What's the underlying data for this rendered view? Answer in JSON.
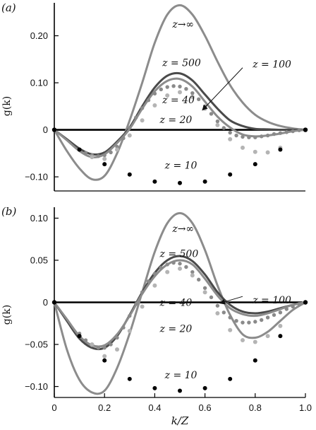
{
  "chart_data": [
    {
      "type": "line",
      "panel_label": "(a)",
      "ylabel": "g(k)",
      "xlabel": "",
      "xlim": [
        0,
        1
      ],
      "ylim": [
        -0.13,
        0.27
      ],
      "yticks": [
        {
          "value": 0.2,
          "label": "0.20"
        },
        {
          "value": 0.1,
          "label": "0.10"
        },
        {
          "value": 0,
          "label": "0"
        },
        {
          "value": -0.1,
          "label": "−0.10"
        }
      ],
      "xticks": [],
      "series": [
        {
          "name": "z→∞",
          "style": "line",
          "color": "#8c8c8c",
          "width": 3,
          "x": [
            0,
            0.05,
            0.1,
            0.15,
            0.2,
            0.25,
            0.3,
            0.35,
            0.4,
            0.45,
            0.5,
            0.55,
            0.6,
            0.65,
            0.7,
            0.75,
            0.8,
            0.85,
            0.9,
            0.95,
            1.0
          ],
          "y": [
            0,
            -0.045,
            -0.082,
            -0.105,
            -0.098,
            -0.05,
            0.02,
            0.1,
            0.185,
            0.245,
            0.265,
            0.245,
            0.2,
            0.145,
            0.095,
            0.058,
            0.032,
            0.017,
            0.008,
            0.003,
            0
          ]
        },
        {
          "name": "z = 500",
          "style": "line",
          "color": "#4a4a4a",
          "width": 3,
          "x": [
            0,
            0.05,
            0.1,
            0.15,
            0.2,
            0.25,
            0.3,
            0.35,
            0.4,
            0.45,
            0.5,
            0.55,
            0.6,
            0.65,
            0.7,
            0.75,
            0.8,
            0.85,
            0.9,
            0.95,
            1.0
          ],
          "y": [
            0,
            -0.02,
            -0.04,
            -0.052,
            -0.048,
            -0.025,
            0.005,
            0.05,
            0.09,
            0.115,
            0.12,
            0.105,
            0.075,
            0.045,
            0.02,
            0.008,
            0.002,
            0.001,
            0,
            0,
            0
          ]
        },
        {
          "name": "z = 100",
          "style": "line",
          "color": "#8c8c8c",
          "width": 3,
          "x": [
            0,
            0.05,
            0.1,
            0.15,
            0.2,
            0.25,
            0.3,
            0.35,
            0.4,
            0.45,
            0.5,
            0.55,
            0.6,
            0.65,
            0.7,
            0.75,
            0.8,
            0.85,
            0.9,
            0.95,
            1.0
          ],
          "y": [
            0,
            -0.022,
            -0.045,
            -0.058,
            -0.052,
            -0.028,
            0.002,
            0.045,
            0.082,
            0.104,
            0.108,
            0.092,
            0.06,
            0.028,
            0.005,
            -0.01,
            -0.014,
            -0.012,
            -0.008,
            -0.003,
            0
          ]
        },
        {
          "name": "z = 40",
          "style": "points",
          "color": "#8a8a8a",
          "r": 2.7,
          "x": [
            0.1,
            0.125,
            0.15,
            0.175,
            0.2,
            0.225,
            0.25,
            0.275,
            0.3,
            0.325,
            0.35,
            0.375,
            0.4,
            0.425,
            0.45,
            0.475,
            0.5,
            0.525,
            0.55,
            0.575,
            0.6,
            0.625,
            0.65,
            0.675,
            0.7,
            0.725,
            0.75,
            0.775,
            0.8,
            0.825,
            0.85,
            0.875,
            0.9,
            0.925,
            0.95,
            0.975
          ],
          "y": [
            -0.042,
            -0.049,
            -0.054,
            -0.056,
            -0.054,
            -0.048,
            -0.036,
            -0.018,
            0.004,
            0.026,
            0.046,
            0.063,
            0.077,
            0.086,
            0.091,
            0.093,
            0.092,
            0.087,
            0.078,
            0.065,
            0.05,
            0.034,
            0.018,
            0.004,
            -0.006,
            -0.012,
            -0.015,
            -0.016,
            -0.016,
            -0.014,
            -0.012,
            -0.009,
            -0.007,
            -0.005,
            -0.003,
            -0.001
          ]
        },
        {
          "name": "z = 20",
          "style": "points",
          "color": "#b4b4b4",
          "r": 3,
          "x": [
            0.15,
            0.2,
            0.25,
            0.3,
            0.35,
            0.4,
            0.45,
            0.5,
            0.55,
            0.6,
            0.65,
            0.7,
            0.75,
            0.8,
            0.85,
            0.9
          ],
          "y": [
            -0.058,
            -0.062,
            -0.042,
            -0.012,
            0.02,
            0.052,
            0.073,
            0.08,
            0.07,
            0.045,
            0.01,
            -0.02,
            -0.038,
            -0.047,
            -0.048,
            -0.038
          ]
        },
        {
          "name": "z = 10",
          "style": "points",
          "color": "#000000",
          "r": 3,
          "x": [
            0.1,
            0.2,
            0.3,
            0.4,
            0.5,
            0.6,
            0.7,
            0.8,
            0.9,
            1.0
          ],
          "y": [
            -0.042,
            -0.073,
            -0.095,
            -0.11,
            -0.113,
            -0.11,
            -0.095,
            -0.073,
            -0.042,
            0
          ]
        }
      ],
      "annotations": [
        {
          "text": "z→∞",
          "x": 0.47,
          "y": 0.225
        },
        {
          "text": "z = 500",
          "x": 0.43,
          "y": 0.143
        },
        {
          "text": "z = 100",
          "x": 0.79,
          "y": 0.14
        },
        {
          "text": "z = 40",
          "x": 0.43,
          "y": 0.064
        },
        {
          "text": "z = 20",
          "x": 0.42,
          "y": 0.022
        },
        {
          "text": "z = 10",
          "x": 0.44,
          "y": -0.075
        }
      ],
      "arrow": {
        "from": [
          0.75,
          0.132
        ],
        "to": [
          0.59,
          0.042
        ]
      }
    },
    {
      "type": "line",
      "panel_label": "(b)",
      "ylabel": "g(k)",
      "xlabel": "k/Z",
      "xlim": [
        0,
        1
      ],
      "ylim": [
        -0.113,
        0.113
      ],
      "yticks": [
        {
          "value": 0.1,
          "label": "0.10"
        },
        {
          "value": 0.05,
          "label": "0.05"
        },
        {
          "value": 0,
          "label": "0"
        },
        {
          "value": -0.05,
          "label": "−0.05"
        },
        {
          "value": -0.1,
          "label": "−0.10"
        }
      ],
      "xticks": [
        {
          "value": 0,
          "label": "0"
        },
        {
          "value": 0.2,
          "label": "0.2"
        },
        {
          "value": 0.4,
          "label": "0.4"
        },
        {
          "value": 0.6,
          "label": "0.6"
        },
        {
          "value": 0.8,
          "label": "0.8"
        },
        {
          "value": 1.0,
          "label": "1.0"
        }
      ],
      "series": [
        {
          "name": "z→∞",
          "style": "line",
          "color": "#8c8c8c",
          "width": 3,
          "x": [
            0,
            0.05,
            0.1,
            0.15,
            0.2,
            0.25,
            0.3,
            0.35,
            0.4,
            0.45,
            0.5,
            0.55,
            0.6,
            0.65,
            0.7,
            0.75,
            0.8,
            0.85,
            0.9,
            0.95,
            1.0
          ],
          "y": [
            0,
            -0.056,
            -0.092,
            -0.107,
            -0.105,
            -0.078,
            -0.037,
            0.012,
            0.06,
            0.094,
            0.106,
            0.094,
            0.062,
            0.02,
            -0.015,
            -0.038,
            -0.042,
            -0.035,
            -0.022,
            -0.009,
            0
          ]
        },
        {
          "name": "z = 500",
          "style": "line",
          "color": "#4a4a4a",
          "width": 3,
          "x": [
            0,
            0.05,
            0.1,
            0.15,
            0.2,
            0.25,
            0.3,
            0.35,
            0.4,
            0.45,
            0.5,
            0.55,
            0.6,
            0.65,
            0.7,
            0.75,
            0.8,
            0.85,
            0.9,
            0.95,
            1.0
          ],
          "y": [
            0,
            -0.022,
            -0.043,
            -0.054,
            -0.054,
            -0.04,
            -0.015,
            0.012,
            0.035,
            0.05,
            0.055,
            0.049,
            0.033,
            0.012,
            -0.003,
            -0.011,
            -0.013,
            -0.011,
            -0.007,
            -0.003,
            0
          ]
        },
        {
          "name": "z = 100",
          "style": "line",
          "color": "#8c8c8c",
          "width": 3,
          "x": [
            0,
            0.05,
            0.1,
            0.15,
            0.2,
            0.25,
            0.3,
            0.35,
            0.4,
            0.45,
            0.5,
            0.55,
            0.6,
            0.65,
            0.7,
            0.75,
            0.8,
            0.85,
            0.9,
            0.95,
            1.0
          ],
          "y": [
            0,
            -0.02,
            -0.04,
            -0.051,
            -0.051,
            -0.038,
            -0.016,
            0.01,
            0.031,
            0.045,
            0.05,
            0.045,
            0.028,
            0.008,
            -0.007,
            -0.014,
            -0.016,
            -0.013,
            -0.008,
            -0.003,
            0
          ]
        },
        {
          "name": "z = 40",
          "style": "points",
          "color": "#8a8a8a",
          "r": 2.7,
          "x": [
            0.1,
            0.125,
            0.15,
            0.175,
            0.2,
            0.225,
            0.25,
            0.275,
            0.3,
            0.325,
            0.35,
            0.375,
            0.4,
            0.425,
            0.45,
            0.475,
            0.5,
            0.525,
            0.55,
            0.575,
            0.6,
            0.625,
            0.65,
            0.675,
            0.7,
            0.725,
            0.75,
            0.775,
            0.8,
            0.825,
            0.85,
            0.875,
            0.9,
            0.925,
            0.95,
            0.975
          ],
          "y": [
            -0.037,
            -0.045,
            -0.051,
            -0.054,
            -0.054,
            -0.05,
            -0.042,
            -0.03,
            -0.016,
            -0.002,
            0.012,
            0.025,
            0.034,
            0.041,
            0.045,
            0.047,
            0.046,
            0.042,
            0.036,
            0.027,
            0.017,
            0.006,
            -0.004,
            -0.012,
            -0.018,
            -0.022,
            -0.024,
            -0.024,
            -0.023,
            -0.021,
            -0.018,
            -0.015,
            -0.012,
            -0.008,
            -0.005,
            -0.002
          ]
        },
        {
          "name": "z = 20",
          "style": "points",
          "color": "#b4b4b4",
          "r": 3,
          "x": [
            0.15,
            0.2,
            0.25,
            0.3,
            0.35,
            0.4,
            0.45,
            0.5,
            0.55,
            0.6,
            0.65,
            0.7,
            0.75,
            0.8,
            0.85,
            0.9
          ],
          "y": [
            -0.05,
            -0.064,
            -0.056,
            -0.034,
            -0.005,
            0.02,
            0.036,
            0.04,
            0.032,
            0.012,
            -0.013,
            -0.033,
            -0.045,
            -0.047,
            -0.04,
            -0.028
          ]
        },
        {
          "name": "z = 10",
          "style": "points",
          "color": "#000000",
          "r": 3,
          "x": [
            0.1,
            0.2,
            0.3,
            0.4,
            0.5,
            0.6,
            0.7,
            0.8,
            0.9,
            1.0
          ],
          "y": [
            -0.04,
            -0.069,
            -0.091,
            -0.102,
            -0.105,
            -0.102,
            -0.091,
            -0.069,
            -0.04,
            0
          ]
        }
      ],
      "annotations": [
        {
          "text": "z→∞",
          "x": 0.47,
          "y": 0.088
        },
        {
          "text": "z = 500",
          "x": 0.42,
          "y": 0.058
        },
        {
          "text": "z = 100",
          "x": 0.79,
          "y": 0.003
        },
        {
          "text": "z = 40",
          "x": 0.42,
          "y": 0.0
        },
        {
          "text": "z = 20",
          "x": 0.42,
          "y": -0.031
        },
        {
          "text": "z = 10",
          "x": 0.44,
          "y": -0.086
        }
      ],
      "arrow": {
        "from": [
          0.75,
          0.007
        ],
        "to": [
          0.66,
          -0.001
        ]
      }
    }
  ]
}
